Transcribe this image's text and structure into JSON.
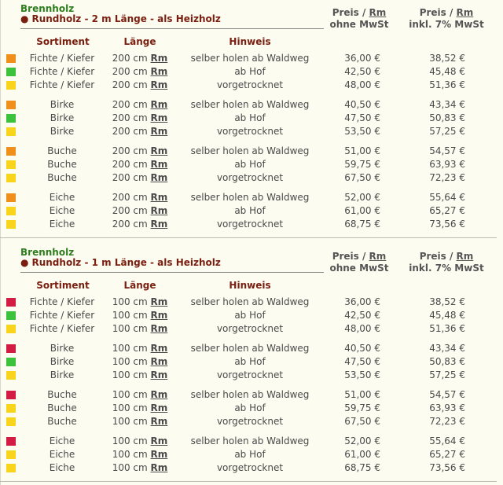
{
  "colors": {
    "orange": "#f0901c",
    "green": "#3cc23c",
    "yellow": "#f8d41c",
    "red": "#d21c44"
  },
  "sections": [
    {
      "category": "Brennholz",
      "subtitle": "Rundholz - 2 m Länge - als Heizholz",
      "price_header_1": {
        "line1_prefix": "Preis / ",
        "unit": "Rm",
        "line2": "ohne MwSt"
      },
      "price_header_2": {
        "line1_prefix": "Preis / ",
        "unit": "Rm",
        "line2": "inkl. 7% MwSt"
      },
      "col_headers": {
        "sortiment": "Sortiment",
        "laenge": "Länge",
        "hinweis": "Hinweis"
      },
      "groups": [
        {
          "rows": [
            {
              "color": "orange",
              "sortiment": "Fichte / Kiefer",
              "laenge": "200 cm",
              "unit": "Rm",
              "hinweis": "selber holen ab Waldweg",
              "netto": "36,00 €",
              "brutto": "38,52 €"
            },
            {
              "color": "green",
              "sortiment": "Fichte / Kiefer",
              "laenge": "200 cm",
              "unit": "Rm",
              "hinweis": "ab Hof",
              "netto": "42,50 €",
              "brutto": "45,48 €"
            },
            {
              "color": "yellow",
              "sortiment": "Fichte / Kiefer",
              "laenge": "200 cm",
              "unit": "Rm",
              "hinweis": "vorgetrocknet",
              "netto": "48,00 €",
              "brutto": "51,36 €"
            }
          ]
        },
        {
          "rows": [
            {
              "color": "orange",
              "sortiment": "Birke",
              "laenge": "200 cm",
              "unit": "Rm",
              "hinweis": "selber holen ab Waldweg",
              "netto": "40,50 €",
              "brutto": "43,34 €"
            },
            {
              "color": "green",
              "sortiment": "Birke",
              "laenge": "200 cm",
              "unit": "Rm",
              "hinweis": "ab Hof",
              "netto": "47,50 €",
              "brutto": "50,83 €"
            },
            {
              "color": "yellow",
              "sortiment": "Birke",
              "laenge": "200 cm",
              "unit": "Rm",
              "hinweis": "vorgetrocknet",
              "netto": "53,50 €",
              "brutto": "57,25 €"
            }
          ]
        },
        {
          "rows": [
            {
              "color": "orange",
              "sortiment": "Buche",
              "laenge": "200 cm",
              "unit": "Rm",
              "hinweis": "selber holen ab Waldweg",
              "netto": "51,00 €",
              "brutto": "54,57 €"
            },
            {
              "color": "yellow",
              "sortiment": "Buche",
              "laenge": "200 cm",
              "unit": "Rm",
              "hinweis": "ab Hof",
              "netto": "59,75 €",
              "brutto": "63,93 €"
            },
            {
              "color": "yellow",
              "sortiment": "Buche",
              "laenge": "200 cm",
              "unit": "Rm",
              "hinweis": "vorgetrocknet",
              "netto": "67,50 €",
              "brutto": "72,23 €"
            }
          ]
        },
        {
          "rows": [
            {
              "color": "orange",
              "sortiment": "Eiche",
              "laenge": "200 cm",
              "unit": "Rm",
              "hinweis": "selber holen ab Waldweg",
              "netto": "52,00 €",
              "brutto": "55,64 €"
            },
            {
              "color": "yellow",
              "sortiment": "Eiche",
              "laenge": "200 cm",
              "unit": "Rm",
              "hinweis": "ab Hof",
              "netto": "61,00 €",
              "brutto": "65,27 €"
            },
            {
              "color": "yellow",
              "sortiment": "Eiche",
              "laenge": "200 cm",
              "unit": "Rm",
              "hinweis": "vorgetrocknet",
              "netto": "68,75 €",
              "brutto": "73,56 €"
            }
          ]
        }
      ]
    },
    {
      "category": "Brennholz",
      "subtitle": "Rundholz - 1 m Länge - als Heizholz",
      "price_header_1": {
        "line1_prefix": "Preis / ",
        "unit": "Rm",
        "line2": "ohne MwSt"
      },
      "price_header_2": {
        "line1_prefix": "Preis / ",
        "unit": "Rm",
        "line2": "inkl. 7% MwSt"
      },
      "col_headers": {
        "sortiment": "Sortiment",
        "laenge": "Länge",
        "hinweis": "Hinweis"
      },
      "groups": [
        {
          "rows": [
            {
              "color": "red",
              "sortiment": "Fichte / Kiefer",
              "laenge": "100 cm",
              "unit": "Rm",
              "hinweis": "selber holen ab Waldweg",
              "netto": "36,00 €",
              "brutto": "38,52 €"
            },
            {
              "color": "green",
              "sortiment": "Fichte / Kiefer",
              "laenge": "100 cm",
              "unit": "Rm",
              "hinweis": "ab Hof",
              "netto": "42,50 €",
              "brutto": "45,48 €"
            },
            {
              "color": "yellow",
              "sortiment": "Fichte / Kiefer",
              "laenge": "100 cm",
              "unit": "Rm",
              "hinweis": "vorgetrocknet",
              "netto": "48,00 €",
              "brutto": "51,36 €"
            }
          ]
        },
        {
          "rows": [
            {
              "color": "red",
              "sortiment": "Birke",
              "laenge": "100 cm",
              "unit": "Rm",
              "hinweis": "selber holen ab Waldweg",
              "netto": "40,50 €",
              "brutto": "43,34 €"
            },
            {
              "color": "green",
              "sortiment": "Birke",
              "laenge": "100 cm",
              "unit": "Rm",
              "hinweis": "ab Hof",
              "netto": "47,50 €",
              "brutto": "50,83 €"
            },
            {
              "color": "yellow",
              "sortiment": "Birke",
              "laenge": "100 cm",
              "unit": "Rm",
              "hinweis": "vorgetrocknet",
              "netto": "53,50 €",
              "brutto": "57,25 €"
            }
          ]
        },
        {
          "rows": [
            {
              "color": "red",
              "sortiment": "Buche",
              "laenge": "100 cm",
              "unit": "Rm",
              "hinweis": "selber holen ab Waldweg",
              "netto": "51,00 €",
              "brutto": "54,57 €"
            },
            {
              "color": "yellow",
              "sortiment": "Buche",
              "laenge": "100 cm",
              "unit": "Rm",
              "hinweis": "ab Hof",
              "netto": "59,75 €",
              "brutto": "63,93 €"
            },
            {
              "color": "yellow",
              "sortiment": "Buche",
              "laenge": "100 cm",
              "unit": "Rm",
              "hinweis": "vorgetrocknet",
              "netto": "67,50 €",
              "brutto": "72,23 €"
            }
          ]
        },
        {
          "rows": [
            {
              "color": "red",
              "sortiment": "Eiche",
              "laenge": "100 cm",
              "unit": "Rm",
              "hinweis": "selber holen ab Waldweg",
              "netto": "52,00 €",
              "brutto": "55,64 €"
            },
            {
              "color": "yellow",
              "sortiment": "Eiche",
              "laenge": "100 cm",
              "unit": "Rm",
              "hinweis": "ab Hof",
              "netto": "61,00 €",
              "brutto": "65,27 €"
            },
            {
              "color": "yellow",
              "sortiment": "Eiche",
              "laenge": "100 cm",
              "unit": "Rm",
              "hinweis": "vorgetrocknet",
              "netto": "68,75 €",
              "brutto": "73,56 €"
            }
          ]
        }
      ]
    }
  ]
}
